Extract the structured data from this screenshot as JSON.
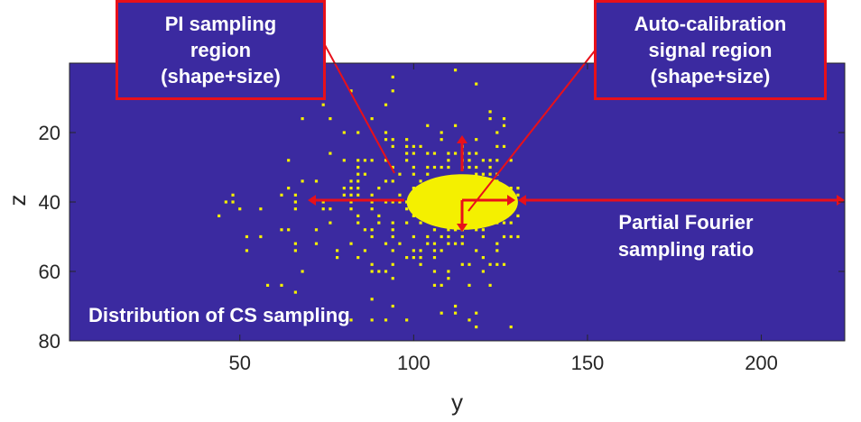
{
  "chart_data": {
    "type": "heatmap",
    "title": "",
    "xlabel": "y",
    "ylabel": "z",
    "xlim": [
      1,
      224
    ],
    "ylim": [
      0,
      80
    ],
    "y_reversed": true,
    "xticks": [
      50,
      100,
      150,
      200
    ],
    "yticks": [
      20,
      40,
      60,
      80
    ],
    "background_color": "#3b2aa0",
    "sample_color": "#f4f000",
    "mask_values": {
      "sampled": 1,
      "not_sampled": 0
    },
    "sampled_y_extent": [
      1,
      130
    ],
    "acs_region": {
      "shape": "ellipse",
      "center_y": 114,
      "center_z": 40,
      "half_width_y": 16,
      "half_height_z": 8
    },
    "partial_fourier_boundary_y": 130,
    "annotations": [
      {
        "id": "pi",
        "text": "PI sampling\nregion\n(shape+size)"
      },
      {
        "id": "acs",
        "text": "Auto-calibration\nsignal region\n(shape+size)"
      },
      {
        "id": "pf",
        "text": "Partial Fourier\nsampling ratio"
      },
      {
        "id": "cs",
        "text": "Distribution of CS sampling"
      }
    ]
  },
  "colors": {
    "arrow": "#e8101a",
    "callout_border": "#e8101a",
    "text_on_plot": "#ffffff"
  }
}
